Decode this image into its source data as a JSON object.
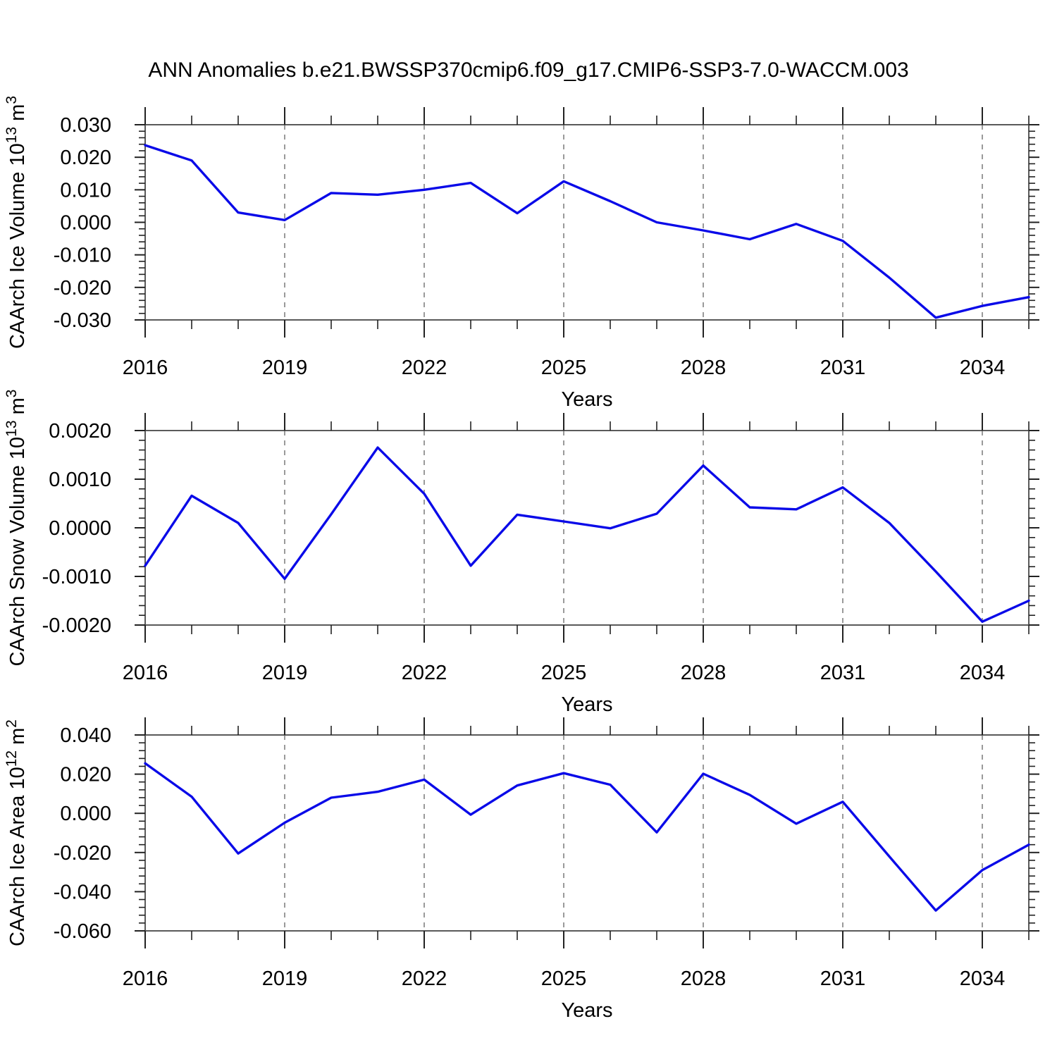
{
  "title": "ANN Anomalies b.e21.BWSSP370cmip6.f09_g17.CMIP6-SSP3-7.0-WACCM.003",
  "colors": {
    "line": "#0a0ae8",
    "grid": "#909090",
    "frame": "#5a5a5a",
    "tick": "#222222",
    "text": "#000000",
    "background": "#ffffff"
  },
  "x_axis": {
    "label": "Years",
    "major_tick_labels": [
      "2016",
      "2019",
      "2022",
      "2025",
      "2028",
      "2031",
      "2034"
    ],
    "major_tick_years": [
      2016,
      2019,
      2022,
      2025,
      2028,
      2031,
      2034
    ],
    "grid_years": [
      2019,
      2022,
      2025,
      2028,
      2031,
      2034
    ],
    "range": [
      2016,
      2035
    ]
  },
  "chart_data": [
    {
      "type": "line",
      "name": "caarch-ice-volume",
      "ylabel": "CAArch Ice Volume 10^13 m^3",
      "ylabel_segments": [
        {
          "text": "CAArch Ice Volume 10"
        },
        {
          "text": "13",
          "sup": true
        },
        {
          "text": " m"
        },
        {
          "text": "3",
          "sup": true
        }
      ],
      "xlabel": "Years",
      "ylim": [
        -0.03,
        0.03
      ],
      "yticks": [
        0.03,
        0.02,
        0.01,
        0,
        -0.01,
        -0.02,
        -0.03
      ],
      "ytick_labels": [
        "0.030",
        "0.020",
        "0.010",
        "0.000",
        "-0.010",
        "-0.020",
        "-0.030"
      ],
      "y_minor_step": 0.002,
      "years": [
        2016,
        2017,
        2018,
        2019,
        2020,
        2021,
        2022,
        2023,
        2024,
        2025,
        2026,
        2027,
        2028,
        2029,
        2030,
        2031,
        2032,
        2033,
        2034,
        2035
      ],
      "values": [
        0.0237,
        0.019,
        0.003,
        0.0007,
        0.009,
        0.0085,
        0.01,
        0.0121,
        0.0028,
        0.0126,
        0.0065,
        0.0,
        -0.0025,
        -0.0052,
        -0.0005,
        -0.0057,
        -0.017,
        -0.0293,
        -0.0257,
        -0.023
      ]
    },
    {
      "type": "line",
      "name": "caarch-snow-volume",
      "ylabel": "CAArch Snow Volume 10^13 m^3",
      "ylabel_segments": [
        {
          "text": "CAArch Snow Volume 10"
        },
        {
          "text": "13",
          "sup": true
        },
        {
          "text": " m"
        },
        {
          "text": "3",
          "sup": true
        }
      ],
      "xlabel": "Years",
      "ylim": [
        -0.002,
        0.002
      ],
      "yticks": [
        0.002,
        0.001,
        0,
        -0.001,
        -0.002
      ],
      "ytick_labels": [
        "0.0020",
        "0.0010",
        "0.0000",
        "-0.0010",
        "-0.0020"
      ],
      "y_minor_step": 0.0002,
      "years": [
        2016,
        2017,
        2018,
        2019,
        2020,
        2021,
        2022,
        2023,
        2024,
        2025,
        2026,
        2027,
        2028,
        2029,
        2030,
        2031,
        2032,
        2033,
        2034,
        2035
      ],
      "values": [
        -0.00078,
        0.00066,
        0.0001,
        -0.00105,
        0.00028,
        0.00165,
        0.0007,
        -0.00078,
        0.00027,
        0.00013,
        -1e-05,
        0.00029,
        0.00128,
        0.00042,
        0.00038,
        0.00083,
        0.0001,
        -0.0009,
        -0.00193,
        -0.0015
      ]
    },
    {
      "type": "line",
      "name": "caarch-ice-area",
      "ylabel": "CAArch Ice Area 10^12 m^2",
      "ylabel_segments": [
        {
          "text": "CAArch Ice Area 10"
        },
        {
          "text": "12",
          "sup": true
        },
        {
          "text": " m"
        },
        {
          "text": "2",
          "sup": true
        }
      ],
      "xlabel": "Years",
      "ylim": [
        -0.06,
        0.04
      ],
      "yticks": [
        0.04,
        0.02,
        0,
        -0.02,
        -0.04,
        -0.06
      ],
      "ytick_labels": [
        "0.040",
        "0.020",
        "0.000",
        "-0.020",
        "-0.040",
        "-0.060"
      ],
      "y_minor_step": 0.004,
      "years": [
        2016,
        2017,
        2018,
        2019,
        2020,
        2021,
        2022,
        2023,
        2024,
        2025,
        2026,
        2027,
        2028,
        2029,
        2030,
        2031,
        2032,
        2033,
        2034,
        2035
      ],
      "values": [
        0.0255,
        0.0085,
        -0.0205,
        -0.0048,
        0.008,
        0.011,
        0.0172,
        -0.0007,
        0.0142,
        0.0205,
        0.0146,
        -0.0097,
        0.0202,
        0.0094,
        -0.0053,
        0.0059,
        -0.022,
        -0.0496,
        -0.029,
        -0.016
      ]
    }
  ]
}
